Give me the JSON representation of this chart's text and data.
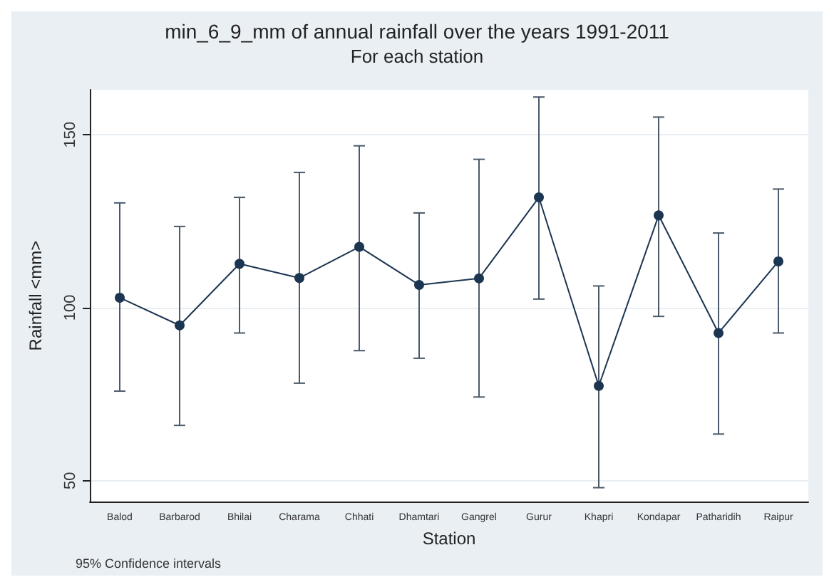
{
  "chart_data": {
    "type": "line",
    "title": "min_6_9_mm of annual rainfall over the years 1991-2011",
    "subtitle": "For each station",
    "xlabel": "Station",
    "ylabel": "Rainfall <mm>",
    "categories": [
      "Balod",
      "Barbarod",
      "Bhilai",
      "Charama",
      "Chhati",
      "Dhamtari",
      "Gangrel",
      "Gurur",
      "Khapri",
      "Kondapar",
      "Patharidih",
      "Raipur"
    ],
    "series": [
      {
        "color": "#1c3550",
        "values": [
          102.9,
          94.9,
          112.7,
          108.6,
          117.6,
          106.6,
          108.5,
          131.9,
          77.4,
          126.7,
          92.7,
          113.4
        ],
        "errors": [
          [
            75.9,
            130.3
          ],
          [
            66.0,
            123.5
          ],
          [
            92.7,
            131.9
          ],
          [
            78.2,
            139.1
          ],
          [
            87.6,
            146.8
          ],
          [
            85.4,
            127.4
          ],
          [
            74.2,
            142.9
          ],
          [
            102.5,
            160.9
          ],
          [
            48.0,
            106.3
          ],
          [
            97.5,
            155.1
          ],
          [
            63.5,
            121.6
          ],
          [
            92.7,
            134.3
          ]
        ]
      }
    ],
    "ylim": [
      44,
      163
    ],
    "yticks": [
      50,
      100,
      150
    ],
    "grid": "y",
    "marker": "circle",
    "line_style": "solid",
    "annotations": [
      "95% Confidence intervals"
    ]
  }
}
